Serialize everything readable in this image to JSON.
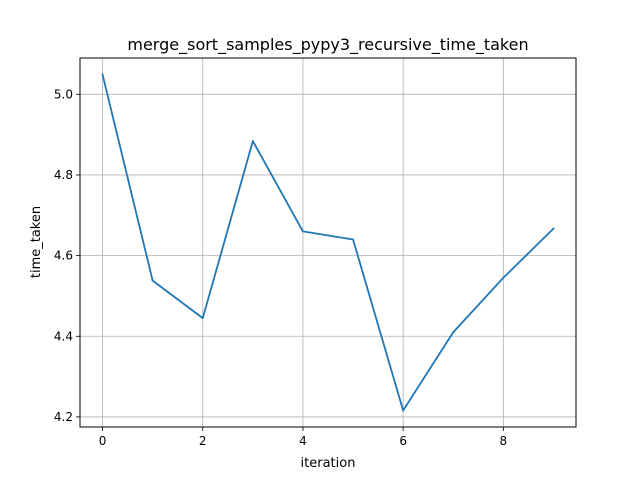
{
  "chart_data": {
    "type": "line",
    "title": "merge_sort_samples_pypy3_recursive_time_taken",
    "xlabel": "iteration",
    "ylabel": "time_taken",
    "x": [
      0,
      1,
      2,
      3,
      4,
      5,
      6,
      7,
      8,
      9
    ],
    "series": [
      {
        "values": [
          5.049,
          4.538,
          4.445,
          4.884,
          4.66,
          4.64,
          4.216,
          4.41,
          4.545,
          4.667
        ],
        "color": "#1f77b4"
      }
    ],
    "xlim": [
      -0.45,
      9.45
    ],
    "ylim": [
      4.175,
      5.09
    ],
    "xticks": [
      0,
      2,
      4,
      6,
      8
    ],
    "yticks": [
      4.2,
      4.4,
      4.6,
      4.8,
      5.0
    ],
    "xtick_labels": [
      "0",
      "2",
      "4",
      "6",
      "8"
    ],
    "ytick_labels": [
      "4.2",
      "4.4",
      "4.6",
      "4.8",
      "5.0"
    ],
    "grid": true,
    "legend": false
  }
}
